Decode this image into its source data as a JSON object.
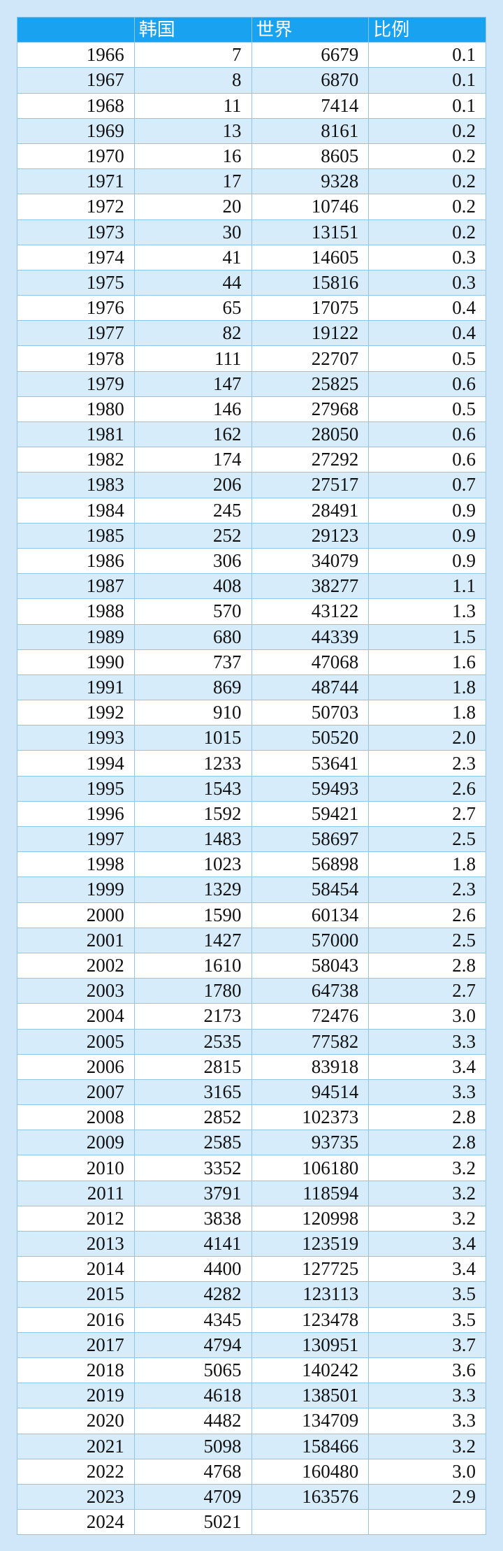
{
  "table": {
    "header": [
      "韩国",
      "世界",
      "比例"
    ],
    "rows": [
      [
        "1966",
        "7",
        "6679",
        "0.1"
      ],
      [
        "1967",
        "8",
        "6870",
        "0.1"
      ],
      [
        "1968",
        "11",
        "7414",
        "0.1"
      ],
      [
        "1969",
        "13",
        "8161",
        "0.2"
      ],
      [
        "1970",
        "16",
        "8605",
        "0.2"
      ],
      [
        "1971",
        "17",
        "9328",
        "0.2"
      ],
      [
        "1972",
        "20",
        "10746",
        "0.2"
      ],
      [
        "1973",
        "30",
        "13151",
        "0.2"
      ],
      [
        "1974",
        "41",
        "14605",
        "0.3"
      ],
      [
        "1975",
        "44",
        "15816",
        "0.3"
      ],
      [
        "1976",
        "65",
        "17075",
        "0.4"
      ],
      [
        "1977",
        "82",
        "19122",
        "0.4"
      ],
      [
        "1978",
        "111",
        "22707",
        "0.5"
      ],
      [
        "1979",
        "147",
        "25825",
        "0.6"
      ],
      [
        "1980",
        "146",
        "27968",
        "0.5"
      ],
      [
        "1981",
        "162",
        "28050",
        "0.6"
      ],
      [
        "1982",
        "174",
        "27292",
        "0.6"
      ],
      [
        "1983",
        "206",
        "27517",
        "0.7"
      ],
      [
        "1984",
        "245",
        "28491",
        "0.9"
      ],
      [
        "1985",
        "252",
        "29123",
        "0.9"
      ],
      [
        "1986",
        "306",
        "34079",
        "0.9"
      ],
      [
        "1987",
        "408",
        "38277",
        "1.1"
      ],
      [
        "1988",
        "570",
        "43122",
        "1.3"
      ],
      [
        "1989",
        "680",
        "44339",
        "1.5"
      ],
      [
        "1990",
        "737",
        "47068",
        "1.6"
      ],
      [
        "1991",
        "869",
        "48744",
        "1.8"
      ],
      [
        "1992",
        "910",
        "50703",
        "1.8"
      ],
      [
        "1993",
        "1015",
        "50520",
        "2.0"
      ],
      [
        "1994",
        "1233",
        "53641",
        "2.3"
      ],
      [
        "1995",
        "1543",
        "59493",
        "2.6"
      ],
      [
        "1996",
        "1592",
        "59421",
        "2.7"
      ],
      [
        "1997",
        "1483",
        "58697",
        "2.5"
      ],
      [
        "1998",
        "1023",
        "56898",
        "1.8"
      ],
      [
        "1999",
        "1329",
        "58454",
        "2.3"
      ],
      [
        "2000",
        "1590",
        "60134",
        "2.6"
      ],
      [
        "2001",
        "1427",
        "57000",
        "2.5"
      ],
      [
        "2002",
        "1610",
        "58043",
        "2.8"
      ],
      [
        "2003",
        "1780",
        "64738",
        "2.7"
      ],
      [
        "2004",
        "2173",
        "72476",
        "3.0"
      ],
      [
        "2005",
        "2535",
        "77582",
        "3.3"
      ],
      [
        "2006",
        "2815",
        "83918",
        "3.4"
      ],
      [
        "2007",
        "3165",
        "94514",
        "3.3"
      ],
      [
        "2008",
        "2852",
        "102373",
        "2.8"
      ],
      [
        "2009",
        "2585",
        "93735",
        "2.8"
      ],
      [
        "2010",
        "3352",
        "106180",
        "3.2"
      ],
      [
        "2011",
        "3791",
        "118594",
        "3.2"
      ],
      [
        "2012",
        "3838",
        "120998",
        "3.2"
      ],
      [
        "2013",
        "4141",
        "123519",
        "3.4"
      ],
      [
        "2014",
        "4400",
        "127725",
        "3.4"
      ],
      [
        "2015",
        "4282",
        "123113",
        "3.5"
      ],
      [
        "2016",
        "4345",
        "123478",
        "3.5"
      ],
      [
        "2017",
        "4794",
        "130951",
        "3.7"
      ],
      [
        "2018",
        "5065",
        "140242",
        "3.6"
      ],
      [
        "2019",
        "4618",
        "138501",
        "3.3"
      ],
      [
        "2020",
        "4482",
        "134709",
        "3.3"
      ],
      [
        "2021",
        "5098",
        "158466",
        "3.2"
      ],
      [
        "2022",
        "4768",
        "160480",
        "3.0"
      ],
      [
        "2023",
        "4709",
        "163576",
        "2.9"
      ],
      [
        "2024",
        "5021"
      ]
    ]
  }
}
